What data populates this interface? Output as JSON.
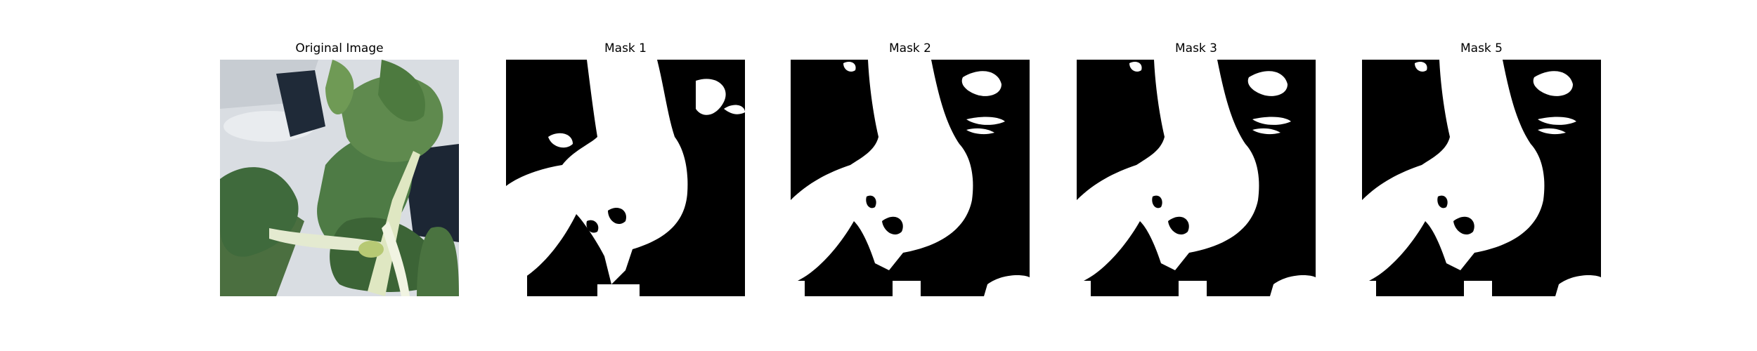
{
  "panels": [
    {
      "title": "Original Image",
      "kind": "photo"
    },
    {
      "title": "Mask 1",
      "kind": "mask"
    },
    {
      "title": "Mask 2",
      "kind": "mask"
    },
    {
      "title": "Mask 3",
      "kind": "mask"
    },
    {
      "title": "Mask 5",
      "kind": "mask"
    }
  ],
  "colors": {
    "background": "#ffffff",
    "mask_fg": "#ffffff",
    "mask_bg": "#000000",
    "leaf_dark": "#3f6a3c",
    "leaf_mid": "#5f8a4e",
    "leaf_light": "#9bb86a",
    "stem": "#dfe7c2",
    "backdrop": "#d4d9de",
    "shadow": "#1f2a38"
  }
}
